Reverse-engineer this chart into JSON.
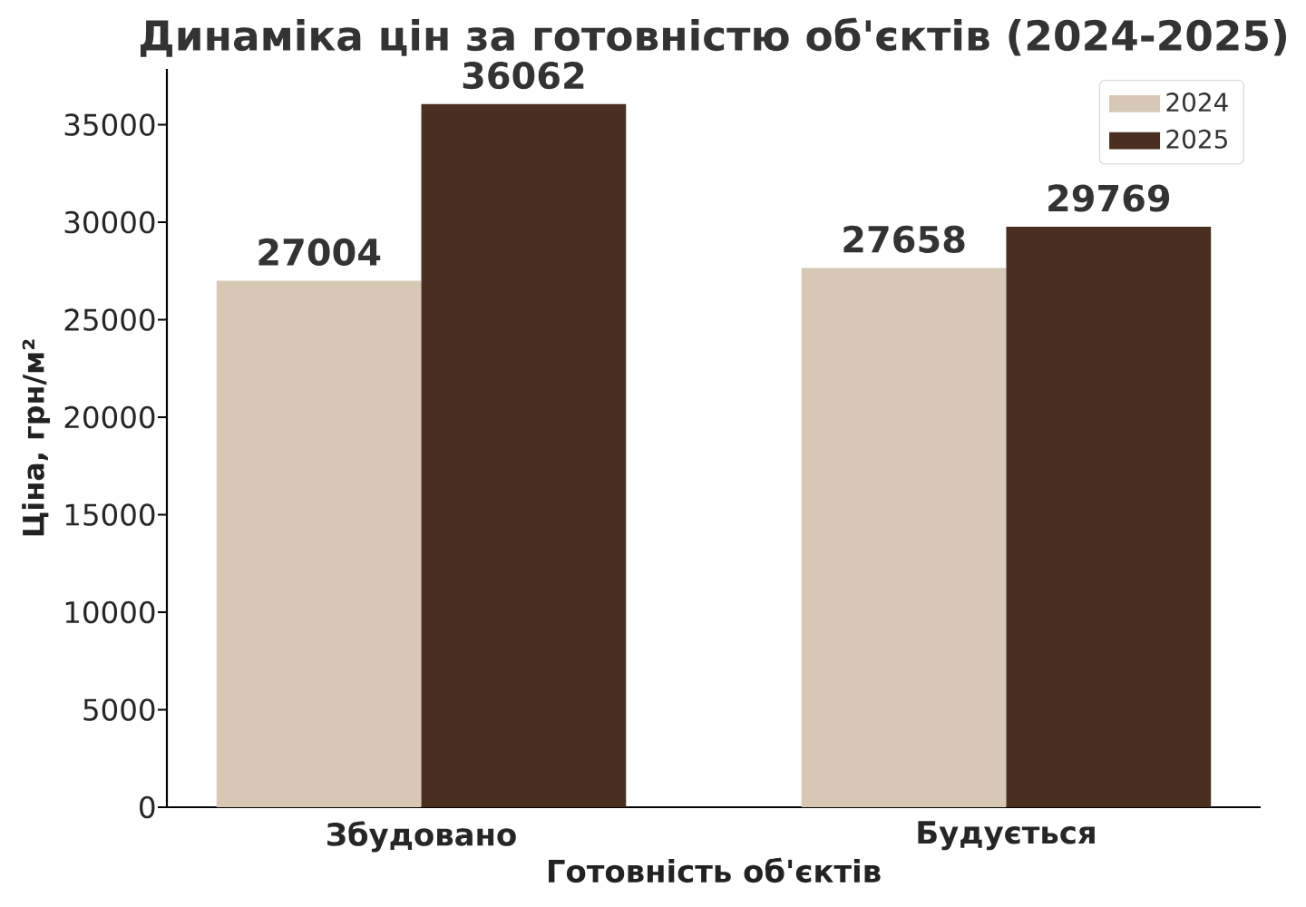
{
  "chart_data": {
    "type": "bar",
    "title": "Динаміка цін за готовністю об'єктів (2024-2025)",
    "xlabel": "Готовність об'єктів",
    "ylabel": "Ціна, грн/м²",
    "categories": [
      "Збудовано",
      "Будується"
    ],
    "series": [
      {
        "name": "2024",
        "color": "#d6c8b4",
        "values": [
          27004,
          27658
        ]
      },
      {
        "name": "2025",
        "color": "#4a2e20",
        "values": [
          36062,
          29769
        ]
      }
    ],
    "ylim": [
      0,
      37865
    ],
    "yticks": [
      0,
      5000,
      10000,
      15000,
      20000,
      25000,
      30000,
      35000
    ],
    "data_labels": true,
    "legend": "top right",
    "grid": false
  }
}
